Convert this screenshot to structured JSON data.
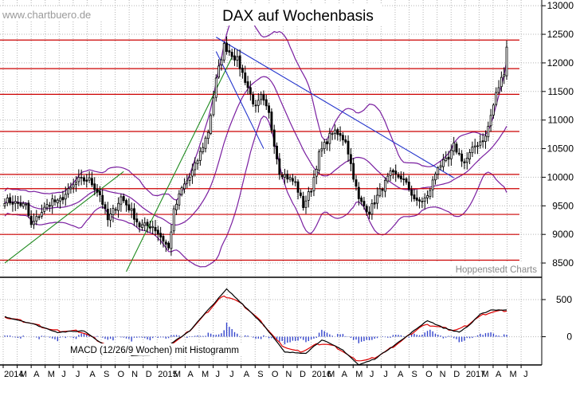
{
  "source_label": "www.chartbuero.de",
  "credit": "Hoppenstedt Charts",
  "colors": {
    "background": "#ffffff",
    "grid": "#b4b4b4",
    "candle": "#000000",
    "bollinger": "#7a1fa0",
    "resistance": "#cc0000",
    "trendline_down": "#2233cc",
    "trendline_up": "#1f8a1f",
    "macd": "#000000",
    "signal": "#dd0000",
    "histogram": "#3344cc"
  },
  "chart_data": [
    {
      "type": "candlestick",
      "title": "DAX auf Wochenbasis",
      "xlabel": "",
      "ylabel": "",
      "ylim": [
        8250,
        13100
      ],
      "y_ticks": [
        8500,
        9000,
        9500,
        10000,
        10500,
        11000,
        11500,
        12000,
        12500,
        13000
      ],
      "x_axis_labels": [
        "2014",
        "M",
        "A",
        "M",
        "J",
        "J",
        "A",
        "S",
        "O",
        "N",
        "D",
        "2015",
        "M",
        "A",
        "M",
        "J",
        "J",
        "A",
        "S",
        "O",
        "N",
        "D",
        "2016",
        "M",
        "A",
        "M",
        "J",
        "J",
        "A",
        "S",
        "O",
        "N",
        "D",
        "2017",
        "M",
        "A",
        "M",
        "J"
      ],
      "grid": true,
      "weekly_close_anchors": {
        "x_week": [
          0,
          8,
          10,
          14,
          18,
          20,
          25,
          28,
          32,
          36,
          39,
          44,
          48,
          51,
          56,
          60,
          62,
          64,
          67,
          70,
          73,
          77,
          80,
          83,
          88,
          91,
          95,
          97,
          100,
          104,
          110,
          113,
          116,
          119,
          124,
          129,
          134,
          138,
          142,
          146,
          150,
          153,
          156,
          160,
          164,
          168,
          170,
          174,
          178,
          182,
          186,
          189,
          190
        ],
        "close": [
          9600,
          9500,
          9150,
          9400,
          9600,
          9550,
          9800,
          9950,
          9950,
          9700,
          9250,
          9650,
          9400,
          9150,
          9150,
          8900,
          8750,
          9400,
          9800,
          10000,
          10300,
          10800,
          11700,
          12300,
          12050,
          11700,
          11200,
          11400,
          11100,
          10100,
          9900,
          9500,
          9800,
          10400,
          10800,
          10650,
          9600,
          9400,
          9750,
          10050,
          10000,
          9800,
          9550,
          9650,
          10200,
          10300,
          10550,
          10250,
          10550,
          10700,
          11450,
          11850,
          12300
        ]
      },
      "resistance_levels": [
        8550,
        9000,
        9350,
        9800,
        10050,
        10800,
        11450,
        11900,
        12400
      ],
      "bollinger_bands": "weekly, upper / middle / lower",
      "annotations": [
        "Hoppenstedt Charts"
      ]
    },
    {
      "type": "line",
      "title": "MACD (12/26/9 Wochen) mit Histogramm",
      "ylim": [
        -380,
        800
      ],
      "y_ticks": [
        0,
        500
      ],
      "series": [
        "MACD",
        "Signal",
        "Histogramm"
      ],
      "macd_anchors": {
        "x_week": [
          0,
          10,
          20,
          30,
          38,
          48,
          56,
          62,
          70,
          78,
          84,
          90,
          98,
          106,
          114,
          120,
          128,
          134,
          140,
          146,
          152,
          160,
          166,
          172,
          176,
          180,
          184,
          190
        ],
        "value": [
          270,
          180,
          60,
          80,
          -120,
          -250,
          -240,
          -120,
          80,
          400,
          640,
          440,
          160,
          -210,
          -220,
          -40,
          -180,
          -380,
          -300,
          -150,
          0,
          220,
          120,
          60,
          160,
          300,
          360,
          360
        ]
      }
    }
  ]
}
